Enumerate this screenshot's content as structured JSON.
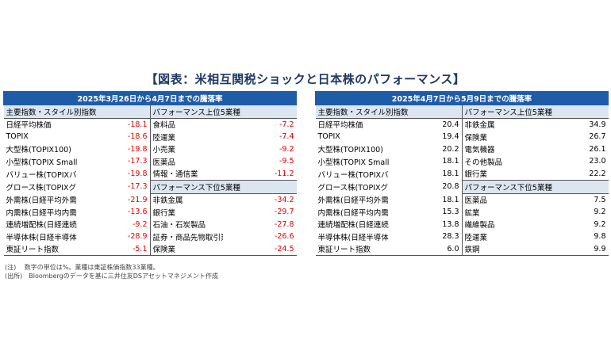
{
  "title": "【図表：米相互関税ショックと日本株のパフォーマンス】",
  "colors": {
    "header_blue": "#1f5ca8",
    "subheader": "#dce6f1",
    "negative": "#e00000",
    "title": "#1f3864"
  },
  "left": {
    "period": "2025年3月26日から4月7日までの騰落率",
    "col_a_header": "主要指数・スタイル別指数",
    "top_header": "パフォーマンス上位5業種",
    "bottom_header": "パフォーマンス下位5業種",
    "indices": [
      {
        "name": "日経平均株価",
        "value": "-18.1"
      },
      {
        "name": "TOPIX",
        "value": "-18.6"
      },
      {
        "name": "大型株(TOPIX100)",
        "value": "-19.8"
      },
      {
        "name": "小型株(TOPIX Small)",
        "value": "-17.3"
      },
      {
        "name": "バリュー株(TOPIXバリュー)",
        "value": "-19.8"
      },
      {
        "name": "グロース株(TOPIXグロース)",
        "value": "-17.3"
      },
      {
        "name": "外需株(日経平均外需株50指数)",
        "value": "-21.9"
      },
      {
        "name": "内需株(日経平均内需株50指数)",
        "value": "-13.6"
      },
      {
        "name": "連続増配株(日経連続増配株指数)",
        "value": "-9.2"
      },
      {
        "name": "半導体株(日経半導体株指数)",
        "value": "-28.9"
      },
      {
        "name": "東証リート指数",
        "value": "-5.1"
      }
    ],
    "top5": [
      {
        "name": "食料品",
        "value": "-7.2"
      },
      {
        "name": "陸運業",
        "value": "-7.4"
      },
      {
        "name": "小売業",
        "value": "-9.2"
      },
      {
        "name": "医薬品",
        "value": "-9.5"
      },
      {
        "name": "情報・通信業",
        "value": "-11.2"
      }
    ],
    "bottom5": [
      {
        "name": "非鉄金属",
        "value": "-34.2"
      },
      {
        "name": "銀行業",
        "value": "-29.7"
      },
      {
        "name": "石油・石炭製品",
        "value": "-27.8"
      },
      {
        "name": "証券・商品先物取引業",
        "value": "-26.6"
      },
      {
        "name": "保険業",
        "value": "-24.5"
      }
    ]
  },
  "right": {
    "period": "2025年4月7日から5月9日までの騰落率",
    "col_a_header": "主要指数・スタイル別指数",
    "top_header": "パフォーマンス上位5業種",
    "bottom_header": "パフォーマンス下位5業種",
    "indices": [
      {
        "name": "日経平均株価",
        "value": "20.4"
      },
      {
        "name": "TOPIX",
        "value": "19.4"
      },
      {
        "name": "大型株(TOPIX100)",
        "value": "20.2"
      },
      {
        "name": "小型株(TOPIX Small)",
        "value": "18.1"
      },
      {
        "name": "バリュー株(TOPIXバリュー)",
        "value": "18.1"
      },
      {
        "name": "グロース株(TOPIXグロース)",
        "value": "20.8"
      },
      {
        "name": "外需株(日経平均外需株50指数)",
        "value": "18.1"
      },
      {
        "name": "内需株(日経平均内需株50指数)",
        "value": "15.3"
      },
      {
        "name": "連続増配株(日経連続増配株指数)",
        "value": "13.8"
      },
      {
        "name": "半導体株(日経半導体株指数)",
        "value": "28.3"
      },
      {
        "name": "東証リート指数",
        "value": "6.0"
      }
    ],
    "top5": [
      {
        "name": "非鉄金属",
        "value": "34.9"
      },
      {
        "name": "保険業",
        "value": "26.7"
      },
      {
        "name": "電気機器",
        "value": "26.1"
      },
      {
        "name": "その他製品",
        "value": "23.0"
      },
      {
        "name": "銀行業",
        "value": "22.2"
      }
    ],
    "bottom5": [
      {
        "name": "医薬品",
        "value": "7.5"
      },
      {
        "name": "鉱業",
        "value": "9.2"
      },
      {
        "name": "繊維製品",
        "value": "9.2"
      },
      {
        "name": "陸運業",
        "value": "9.8"
      },
      {
        "name": "鉄鋼",
        "value": "9.9"
      }
    ]
  },
  "notes": {
    "note": "(注)　 数字の単位は%。業種は東証株価指数33業種。",
    "source": "(出所)　Bloombergのデータを基に三井住友DSアセットマネジメント作成"
  }
}
